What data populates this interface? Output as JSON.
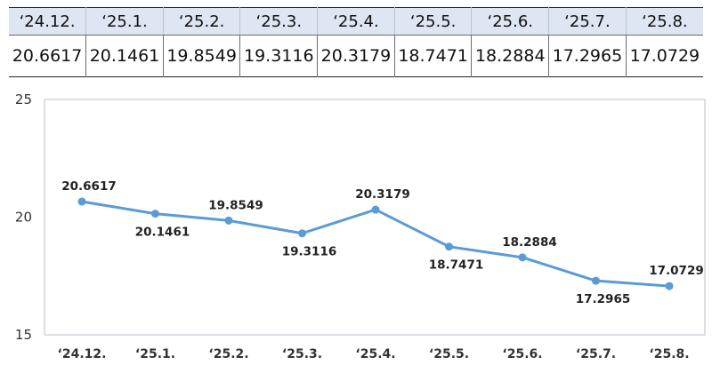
{
  "table": {
    "headers": [
      "‘24.12.",
      "‘25.1.",
      "‘25.2.",
      "‘25.3.",
      "‘25.4.",
      "‘25.5.",
      "‘25.6.",
      "‘25.7.",
      "‘25.8."
    ],
    "values": [
      "20.6617",
      "20.1461",
      "19.8549",
      "19.3116",
      "20.3179",
      "18.7471",
      "18.2884",
      "17.2965",
      "17.0729"
    ]
  },
  "chart_data": {
    "type": "line",
    "categories": [
      "‘24.12.",
      "‘25.1.",
      "‘25.2.",
      "‘25.3.",
      "‘25.4.",
      "‘25.5.",
      "‘25.6.",
      "‘25.7.",
      "‘25.8."
    ],
    "values": [
      20.6617,
      20.1461,
      19.8549,
      19.3116,
      20.3179,
      18.7471,
      18.2884,
      17.2965,
      17.0729
    ],
    "data_labels": [
      "20.6617",
      "20.1461",
      "19.8549",
      "19.3116",
      "20.3179",
      "18.7471",
      "18.2884",
      "17.2965",
      "17.0729"
    ],
    "label_position": [
      "above",
      "below",
      "above",
      "below",
      "above",
      "below",
      "above",
      "below",
      "above"
    ],
    "yticks": [
      "15",
      "20",
      "25"
    ],
    "ylim": [
      15,
      25
    ],
    "title": "",
    "xlabel": "",
    "ylabel": "",
    "grid": false,
    "legend": "none",
    "colors": {
      "line": "#5b9bd5",
      "plot_border": "#cfd5dd",
      "text": "#333333"
    }
  }
}
